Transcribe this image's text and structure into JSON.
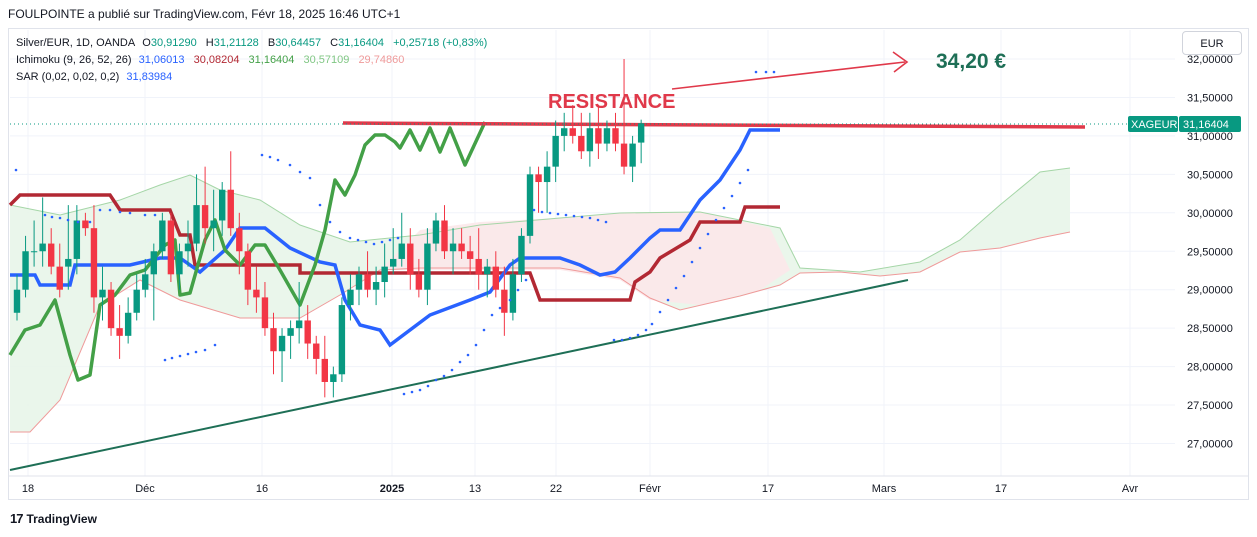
{
  "header": {
    "publisher_line": "FOULPOINTE a publié sur TradingView.com, Févr 18, 2025 16:46 UTC+1"
  },
  "legend": {
    "symbol": "Silver/EUR, 1D, OANDA",
    "ohlc": {
      "open_label": "O",
      "open": "30,91290",
      "high_label": "H",
      "high": "31,21128",
      "low_label": "B",
      "low": "30,64457",
      "close_label": "C",
      "close": "31,16404",
      "change": "+0,25718 (+0,83%)"
    },
    "ichimoku": {
      "label": "Ichimoku (9, 26, 52, 26)",
      "values": [
        "31,06013",
        "30,08204",
        "31,16404",
        "30,57109",
        "29,74860"
      ]
    },
    "sar": {
      "label": "SAR (0,02, 0,02, 0,2)",
      "value": "31,83984"
    }
  },
  "currency_button": "EUR",
  "price_tag": {
    "symbol": "XAGEUR",
    "value": "31,16404"
  },
  "annotations": {
    "resistance": "RESISTANCE",
    "target": "34,20 €"
  },
  "colors": {
    "up": "#089981",
    "down": "#f23645",
    "tenkan": "#2962ff",
    "kijun": "#b22833",
    "chikou": "#43a047",
    "resistance": "#e0394a",
    "trendline": "#1e6f56",
    "cloud_green": "#e6f4ea",
    "cloud_red": "#fbe4e6",
    "sar": "#2962ff"
  },
  "footer": {
    "brand": "TradingView"
  },
  "chart_data": {
    "type": "candlestick",
    "title": "Silver/EUR, 1D, OANDA",
    "y_ticks": [
      "27,00000",
      "27,50000",
      "28,00000",
      "28,50000",
      "29,00000",
      "29,50000",
      "30,00000",
      "30,50000",
      "31,00000",
      "31,50000",
      "32,00000"
    ],
    "x_ticks": [
      "18",
      "Déc",
      "16",
      "2025",
      "13",
      "22",
      "Févr",
      "17",
      "Mars",
      "17",
      "Avr"
    ],
    "ylim": [
      26.6,
      32.2
    ],
    "candles": [
      [
        28.7,
        29.2,
        28.6,
        29.0
      ],
      [
        29.0,
        29.7,
        28.9,
        29.5
      ],
      [
        29.5,
        29.9,
        29.3,
        29.5
      ],
      [
        29.5,
        30.2,
        29.3,
        29.6
      ],
      [
        29.6,
        29.8,
        29.2,
        29.3
      ],
      [
        29.3,
        29.6,
        28.9,
        29.0
      ],
      [
        29.3,
        30.1,
        29.0,
        29.4
      ],
      [
        29.4,
        30.1,
        29.2,
        29.9
      ],
      [
        29.9,
        30.0,
        29.7,
        29.8
      ],
      [
        29.8,
        30.1,
        28.7,
        28.9
      ],
      [
        28.9,
        29.3,
        28.6,
        29.0
      ],
      [
        29.0,
        29.1,
        28.4,
        28.5
      ],
      [
        28.5,
        28.8,
        28.1,
        28.4
      ],
      [
        28.4,
        28.9,
        28.3,
        28.7
      ],
      [
        28.7,
        29.2,
        28.6,
        29.0
      ],
      [
        29.0,
        29.4,
        28.9,
        29.2
      ],
      [
        29.2,
        29.6,
        28.6,
        29.5
      ],
      [
        29.5,
        30.0,
        29.4,
        29.9
      ],
      [
        29.9,
        30.0,
        29.1,
        29.2
      ],
      [
        29.2,
        29.6,
        29.0,
        29.5
      ],
      [
        29.5,
        29.9,
        29.3,
        29.6
      ],
      [
        29.6,
        30.5,
        29.5,
        30.1
      ],
      [
        30.1,
        30.6,
        29.6,
        29.8
      ],
      [
        29.8,
        30.3,
        29.5,
        29.9
      ],
      [
        29.9,
        30.4,
        29.7,
        30.3
      ],
      [
        30.3,
        30.8,
        29.7,
        29.8
      ],
      [
        29.8,
        30.0,
        29.2,
        29.5
      ],
      [
        29.5,
        29.6,
        28.8,
        29.0
      ],
      [
        29.0,
        29.3,
        28.7,
        28.9
      ],
      [
        28.9,
        29.1,
        28.4,
        28.5
      ],
      [
        28.5,
        28.7,
        27.9,
        28.2
      ],
      [
        28.2,
        28.5,
        27.8,
        28.4
      ],
      [
        28.4,
        28.6,
        28.1,
        28.5
      ],
      [
        28.5,
        29.1,
        28.3,
        28.6
      ],
      [
        28.6,
        28.8,
        28.1,
        28.3
      ],
      [
        28.3,
        28.4,
        27.9,
        28.1
      ],
      [
        28.1,
        28.4,
        27.6,
        27.8
      ],
      [
        27.8,
        28.0,
        27.6,
        27.9
      ],
      [
        27.9,
        28.9,
        27.8,
        28.8
      ],
      [
        28.8,
        29.2,
        28.6,
        29.0
      ],
      [
        29.0,
        29.3,
        28.8,
        29.2
      ],
      [
        29.2,
        29.5,
        28.9,
        29.0
      ],
      [
        29.0,
        29.3,
        28.8,
        29.1
      ],
      [
        29.1,
        29.6,
        28.9,
        29.3
      ],
      [
        29.3,
        29.8,
        29.2,
        29.4
      ],
      [
        29.4,
        30.0,
        29.3,
        29.6
      ],
      [
        29.6,
        29.8,
        29.0,
        29.2
      ],
      [
        29.2,
        29.4,
        28.9,
        29.0
      ],
      [
        29.0,
        29.8,
        28.8,
        29.6
      ],
      [
        29.6,
        30.0,
        29.5,
        29.9
      ],
      [
        29.9,
        30.1,
        29.4,
        29.5
      ],
      [
        29.5,
        29.8,
        29.2,
        29.6
      ],
      [
        29.6,
        29.8,
        29.4,
        29.5
      ],
      [
        29.5,
        29.7,
        29.2,
        29.4
      ],
      [
        29.4,
        29.8,
        29.0,
        29.2
      ],
      [
        29.2,
        29.4,
        28.9,
        29.3
      ],
      [
        29.3,
        29.5,
        28.9,
        29.0
      ],
      [
        29.0,
        29.3,
        28.4,
        28.7
      ],
      [
        28.7,
        29.4,
        28.6,
        29.2
      ],
      [
        29.2,
        29.8,
        29.1,
        29.7
      ],
      [
        29.7,
        30.6,
        29.6,
        30.5
      ],
      [
        30.5,
        30.6,
        30.0,
        30.4
      ],
      [
        30.4,
        30.8,
        30.0,
        30.6
      ],
      [
        30.6,
        31.2,
        30.4,
        31.0
      ],
      [
        31.0,
        31.3,
        30.8,
        31.1
      ],
      [
        31.1,
        31.4,
        30.9,
        31.0
      ],
      [
        31.0,
        31.3,
        30.7,
        30.8
      ],
      [
        30.8,
        31.3,
        30.6,
        31.1
      ],
      [
        31.1,
        31.4,
        30.7,
        30.9
      ],
      [
        30.9,
        31.2,
        30.8,
        31.1
      ],
      [
        31.1,
        31.3,
        30.8,
        30.9
      ],
      [
        30.9,
        32.0,
        30.5,
        30.6
      ],
      [
        30.6,
        31.0,
        30.4,
        30.9
      ],
      [
        30.913,
        31.211,
        30.645,
        31.164
      ]
    ],
    "series": [
      {
        "name": "Tenkan",
        "color": "#2962ff"
      },
      {
        "name": "Kijun",
        "color": "#b22833"
      },
      {
        "name": "Chikou",
        "color": "#43a047"
      }
    ]
  }
}
